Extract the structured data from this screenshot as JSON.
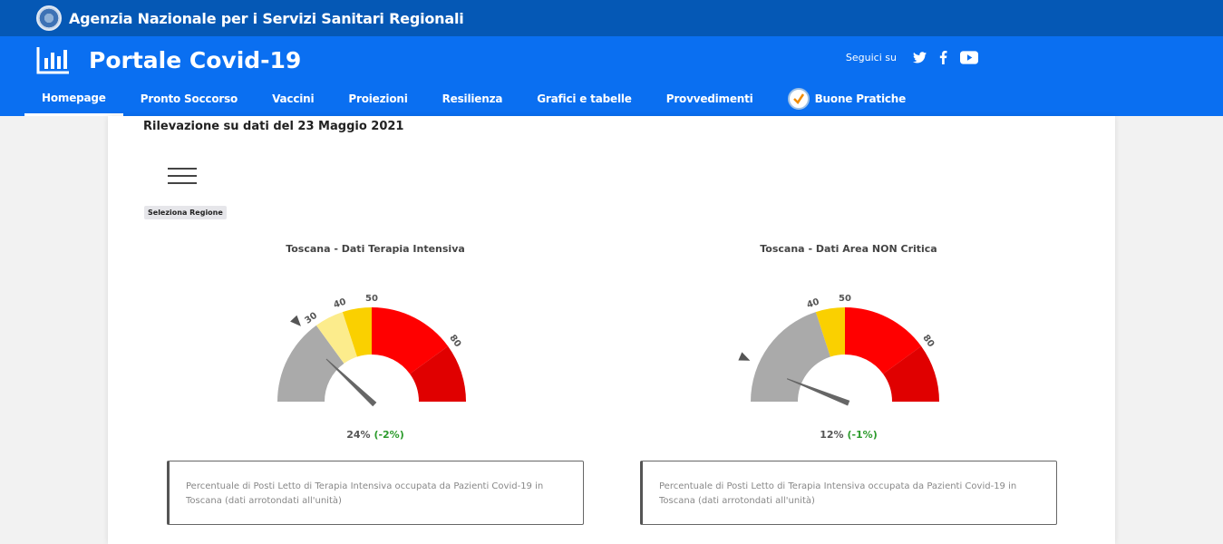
{
  "topbar": {
    "agency": "Agenzia Nazionale per i Servizi Sanitari Regionali",
    "emblem_icon": "emblem-icon"
  },
  "header": {
    "title": "Portale Covid-19",
    "logo_icon": "bar-chart-icon",
    "social_label": "Seguici su",
    "social_icons": [
      "twitter-icon",
      "facebook-icon",
      "youtube-icon"
    ]
  },
  "nav": {
    "items": [
      "Homepage",
      "Pronto Soccorso",
      "Vaccini",
      "Proiezioni",
      "Resilienza",
      "Grafici e tabelle",
      "Provvedimenti",
      "Buone Pratiche"
    ],
    "active": "Homepage"
  },
  "main": {
    "survey_title": "Rilevazione su dati del 23 Maggio 2021",
    "menu_icon": "hamburger-icon",
    "region_button": "Seleziona Regione"
  },
  "colors": {
    "grey": "#aaaaaa",
    "light_yellow": "#fcec8c",
    "yellow": "#fad000",
    "red": "#ff0000",
    "dark_red": "#e00000",
    "needle": "#666666",
    "delta_green": "#2c9b2c"
  },
  "chart_data": [
    {
      "type": "gauge",
      "title": "Toscana - Dati Terapia Intensiva",
      "range": [
        0,
        100
      ],
      "bands": [
        {
          "from": 0,
          "to": 30,
          "color": "#aaaaaa"
        },
        {
          "from": 30,
          "to": 40,
          "color": "#fcec8c"
        },
        {
          "from": 40,
          "to": 50,
          "color": "#fad000"
        },
        {
          "from": 50,
          "to": 80,
          "color": "#ff0000"
        },
        {
          "from": 80,
          "to": 100,
          "color": "#e00000"
        }
      ],
      "tick_labels": [
        "30",
        "40",
        "50",
        "80"
      ],
      "tick_values": [
        30,
        40,
        50,
        80
      ],
      "value": 24,
      "value_label": "24%",
      "delta_label": "(-2%)",
      "previous_value": 26,
      "description": "Percentuale di Posti Letto di Terapia Intensiva occupata da Pazienti Covid-19 in Toscana (dati arrotondati all'unità)"
    },
    {
      "type": "gauge",
      "title": "Toscana - Dati Area NON Critica",
      "range": [
        0,
        100
      ],
      "bands": [
        {
          "from": 0,
          "to": 40,
          "color": "#aaaaaa"
        },
        {
          "from": 40,
          "to": 50,
          "color": "#fad000"
        },
        {
          "from": 50,
          "to": 80,
          "color": "#ff0000"
        },
        {
          "from": 80,
          "to": 100,
          "color": "#e00000"
        }
      ],
      "tick_labels": [
        "40",
        "50",
        "80"
      ],
      "tick_values": [
        40,
        50,
        80
      ],
      "value": 12,
      "value_label": "12%",
      "delta_label": "(-1%)",
      "previous_value": 13,
      "description": "Percentuale di Posti Letto di Terapia Intensiva occupata da Pazienti Covid-19 in Toscana (dati arrotondati all'unità)"
    }
  ]
}
